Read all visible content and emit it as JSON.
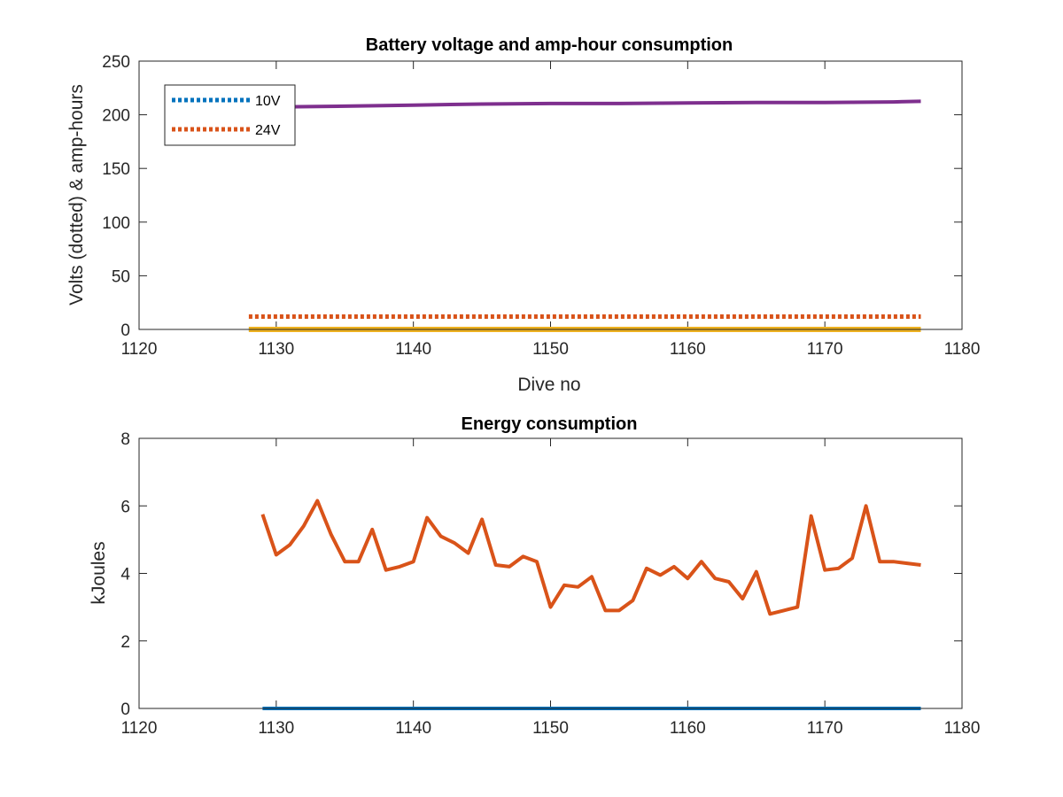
{
  "chart_data": [
    {
      "type": "line",
      "title": "Battery voltage and amp-hour consumption",
      "xlabel": "Dive no",
      "ylabel": "Volts (dotted) & amp-hours",
      "xlim": [
        1120,
        1180
      ],
      "ylim": [
        0,
        250
      ],
      "xticks": [
        "1120",
        "1130",
        "1140",
        "1150",
        "1160",
        "1170",
        "1180"
      ],
      "yticks": [
        "0",
        "50",
        "100",
        "150",
        "200",
        "250"
      ],
      "legend_position": "top-left",
      "series": [
        {
          "name": "10V",
          "style": "dotted",
          "color": "#0072BD",
          "x": [
            1128,
            1177
          ],
          "y": [
            0,
            0
          ]
        },
        {
          "name": "24V",
          "style": "dotted",
          "color": "#D95319",
          "x": [
            1128,
            1177
          ],
          "y": [
            12,
            12
          ]
        },
        {
          "style": "solid",
          "color": "#EDB120",
          "x": [
            1128,
            1177
          ],
          "y": [
            0,
            0
          ]
        },
        {
          "style": "solid",
          "color": "#7E2F8E",
          "x": [
            1128,
            1135,
            1140,
            1145,
            1150,
            1155,
            1160,
            1165,
            1170,
            1175,
            1177
          ],
          "y": [
            207,
            208,
            209,
            210,
            210.5,
            210.5,
            211,
            211.5,
            211.5,
            212,
            212.5
          ]
        }
      ]
    },
    {
      "type": "line",
      "title": "Energy consumption",
      "xlabel": "",
      "ylabel": "kJoules",
      "xlim": [
        1120,
        1180
      ],
      "ylim": [
        0,
        8
      ],
      "xticks": [
        "1120",
        "1130",
        "1140",
        "1150",
        "1160",
        "1170",
        "1180"
      ],
      "yticks": [
        "0",
        "2",
        "4",
        "6",
        "8"
      ],
      "series": [
        {
          "style": "solid",
          "color": "#0072BD",
          "x": [
            1129,
            1177
          ],
          "y": [
            0,
            0
          ]
        },
        {
          "style": "solid",
          "color": "#D95319",
          "x": [
            1129,
            1130,
            1131,
            1132,
            1133,
            1134,
            1135,
            1136,
            1137,
            1138,
            1139,
            1140,
            1141,
            1142,
            1143,
            1144,
            1145,
            1146,
            1147,
            1148,
            1149,
            1150,
            1151,
            1152,
            1153,
            1154,
            1155,
            1156,
            1157,
            1158,
            1159,
            1160,
            1161,
            1162,
            1163,
            1164,
            1165,
            1166,
            1167,
            1168,
            1169,
            1170,
            1171,
            1172,
            1173,
            1174,
            1175,
            1176,
            1177
          ],
          "y": [
            5.75,
            4.55,
            4.85,
            5.4,
            6.15,
            5.15,
            4.35,
            4.35,
            5.3,
            4.1,
            4.2,
            4.35,
            5.65,
            5.1,
            4.9,
            4.6,
            5.6,
            4.25,
            4.2,
            4.5,
            4.35,
            3.0,
            3.65,
            3.6,
            3.9,
            2.9,
            2.9,
            3.2,
            4.15,
            3.95,
            4.2,
            3.85,
            4.35,
            3.85,
            3.75,
            3.25,
            4.05,
            2.8,
            2.9,
            3.0,
            5.7,
            4.1,
            4.15,
            4.45,
            6.0,
            4.35,
            4.35,
            4.3,
            4.25
          ]
        }
      ]
    }
  ]
}
